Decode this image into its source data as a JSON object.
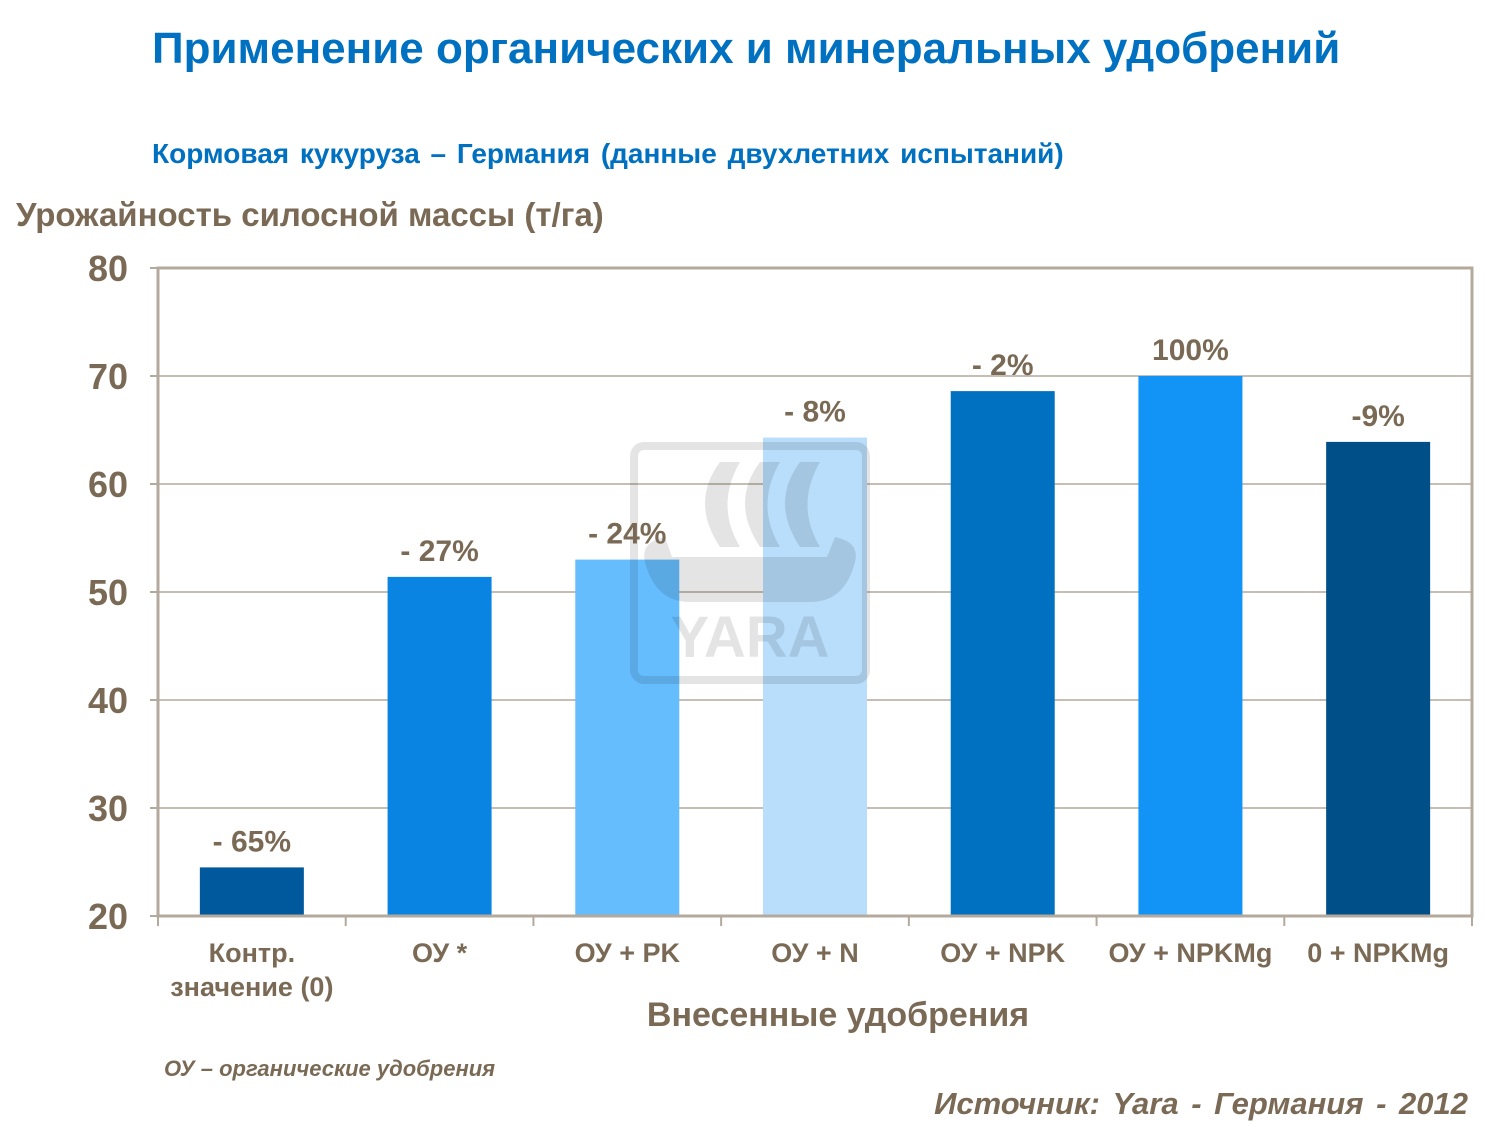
{
  "header": {
    "title": "Применение органических и минеральных удобрений",
    "subtitle": "Кормовая кукуруза – Германия (данные двухлетних испытаний)"
  },
  "footnote": "ОУ – органические удобрения",
  "source": "Источник: Yara - Германия - 2012",
  "watermark": "YARA",
  "chart_data": {
    "type": "bar",
    "title": "Применение органических и минеральных удобрений",
    "ylabel": "Урожайность силосной массы (т/га)",
    "xlabel": "Внесенные удобрения",
    "ylim": [
      20,
      80
    ],
    "yticks": [
      "20",
      "30",
      "40",
      "50",
      "60",
      "70",
      "80"
    ],
    "grid": true,
    "categories": [
      [
        "Контр.",
        "значение (0)"
      ],
      [
        "ОУ *"
      ],
      [
        "ОУ + PK"
      ],
      [
        "ОУ + N"
      ],
      [
        "ОУ + NPK"
      ],
      [
        "ОУ + NPKMg"
      ],
      [
        "0 + NPKMg"
      ]
    ],
    "values": [
      24.5,
      51.4,
      53.0,
      64.3,
      68.6,
      70.0,
      63.9
    ],
    "data_labels": [
      "- 65%",
      "- 27%",
      "- 24%",
      "- 8%",
      "- 2%",
      "100%",
      "-9%"
    ],
    "colors": [
      "#00599c",
      "#0a84e2",
      "#66bdfe",
      "#b8defc",
      "#0070c0",
      "#1294f6",
      "#004f88"
    ]
  }
}
